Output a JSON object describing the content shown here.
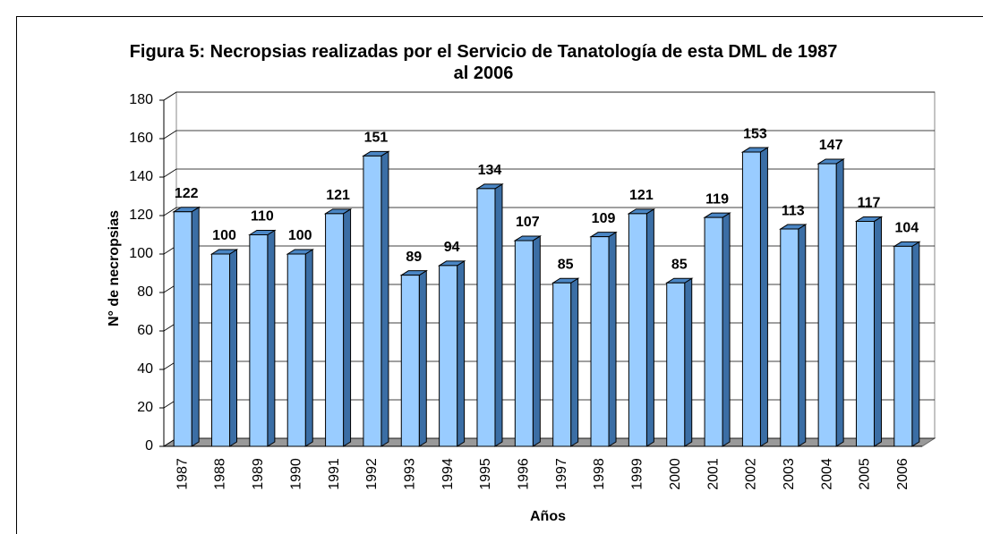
{
  "chart_data": {
    "type": "bar",
    "title": "Figura 5: Necropsias realizadas por el Servicio de Tanatología de esta DML de 1987 al 2006",
    "x_label": "Años",
    "y_label": "N° de necropsias",
    "categories": [
      "1987",
      "1988",
      "1989",
      "1990",
      "1991",
      "1992",
      "1993",
      "1994",
      "1995",
      "1996",
      "1997",
      "1998",
      "1999",
      "2000",
      "2001",
      "2002",
      "2003",
      "2004",
      "2005",
      "2006"
    ],
    "values": [
      122,
      100,
      110,
      100,
      121,
      151,
      89,
      94,
      134,
      107,
      85,
      109,
      121,
      85,
      119,
      153,
      113,
      147,
      117,
      104
    ],
    "color": "#99ccff",
    "ylim": [
      0,
      180
    ],
    "yticks": [
      0,
      20,
      40,
      60,
      80,
      100,
      120,
      140,
      160,
      180
    ],
    "grid": true
  }
}
